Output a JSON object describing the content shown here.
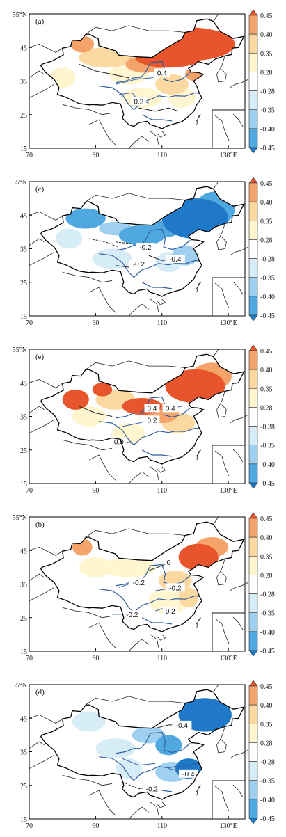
{
  "lat_ticks": [
    "55°N",
    "45",
    "35",
    "25",
    "15"
  ],
  "lon_ticks": [
    "70",
    "90",
    "110",
    "130°E"
  ],
  "colorbar": {
    "levels": [
      "0.45",
      "0.40",
      "0.35",
      "0.28",
      "-0.28",
      "-0.35",
      "-0.40",
      "-0.45"
    ],
    "colors": [
      "#e8542b",
      "#f4a46a",
      "#fbd9a0",
      "#fff6cf",
      "#ffffff",
      "#d6ecf7",
      "#9fd0ef",
      "#4fa8df",
      "#1f78c8"
    ]
  },
  "panels": [
    {
      "label": "(a)",
      "mode": "warm",
      "contours": [
        "0.4",
        "0.2"
      ]
    },
    {
      "label": "(c)",
      "mode": "cool",
      "contours": [
        "-0.2",
        "-0.4",
        "-0.2"
      ]
    },
    {
      "label": "(e)",
      "mode": "warm",
      "contours": [
        "0.4",
        "0.4",
        "0.2",
        "0.0"
      ]
    },
    {
      "label": "(b)",
      "mode": "warm",
      "contours": [
        "0",
        "-0.2",
        "-0.2",
        "0.2",
        "-0.2"
      ]
    },
    {
      "label": "(d)",
      "mode": "cool",
      "contours": [
        "-0.4",
        "-0.4",
        "-0.2"
      ]
    }
  ]
}
